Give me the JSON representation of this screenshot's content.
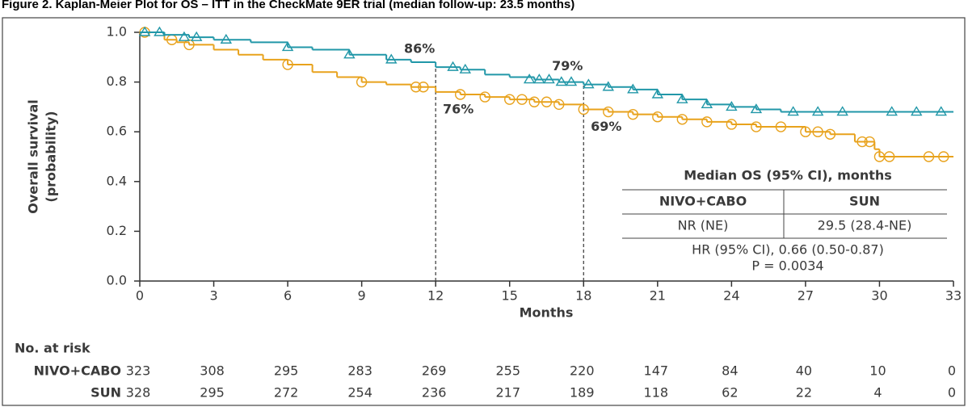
{
  "chart_data": {
    "type": "kaplan-meier",
    "title": "Figure 2. Kaplan-Meier Plot for OS – ITT in the CheckMate 9ER trial (median follow-up: 23.5 months)",
    "x_label": "Months",
    "y_label": [
      "Overall survival",
      "(probability)"
    ],
    "xlim": [
      0,
      33
    ],
    "xticks": [
      0,
      3,
      6,
      9,
      12,
      15,
      18,
      21,
      24,
      27,
      30,
      33
    ],
    "ylim": [
      0,
      1
    ],
    "yticks": [
      {
        "value": 0,
        "label": "0.0"
      },
      0.2,
      0.4,
      0.6,
      0.8,
      {
        "value": 1,
        "label": "1.0"
      }
    ],
    "series": [
      {
        "name": "NIVO+CABO",
        "color": "#2197a8",
        "marker": "triangle",
        "x": [
          0,
          1,
          2,
          3,
          4.5,
          6,
          7,
          8.5,
          10,
          11,
          12,
          13,
          14,
          15,
          16,
          17,
          18,
          19,
          20,
          21,
          22,
          23,
          24,
          25,
          26,
          33
        ],
        "values": [
          1.0,
          0.99,
          0.98,
          0.97,
          0.96,
          0.94,
          0.93,
          0.91,
          0.89,
          0.88,
          0.86,
          0.85,
          0.83,
          0.82,
          0.81,
          0.8,
          0.79,
          0.78,
          0.77,
          0.75,
          0.73,
          0.71,
          0.7,
          0.69,
          0.68,
          0.68
        ],
        "censor_x": [
          0.2,
          0.8,
          1.8,
          2.3,
          3.5,
          6,
          8.5,
          10.2,
          12.7,
          13.2,
          15.8,
          16.2,
          16.6,
          17.1,
          17.5,
          18.2,
          19,
          20,
          21,
          22,
          23,
          24,
          25,
          26.5,
          27.5,
          28.5,
          30.5,
          31.5,
          32.5
        ],
        "censor_values": [
          1.0,
          1.0,
          0.98,
          0.98,
          0.97,
          0.94,
          0.91,
          0.89,
          0.86,
          0.85,
          0.81,
          0.81,
          0.81,
          0.8,
          0.8,
          0.79,
          0.78,
          0.77,
          0.75,
          0.73,
          0.71,
          0.7,
          0.69,
          0.68,
          0.68,
          0.68,
          0.68,
          0.68,
          0.68
        ],
        "at_risk": [
          "323",
          "308",
          "295",
          "283",
          "269",
          "255",
          "220",
          "147",
          "84",
          "40",
          "10",
          "0"
        ]
      },
      {
        "name": "SUN",
        "color": "#e8a21c",
        "marker": "circle",
        "x": [
          0,
          1,
          1.5,
          2,
          3,
          4,
          5,
          6,
          7,
          8,
          9,
          10,
          11,
          12,
          13,
          14,
          15,
          16,
          17,
          18,
          19,
          20,
          21,
          22,
          23,
          24,
          25,
          27,
          28,
          29,
          29.8,
          30,
          33
        ],
        "values": [
          1.0,
          0.97,
          0.96,
          0.95,
          0.93,
          0.91,
          0.89,
          0.87,
          0.84,
          0.82,
          0.8,
          0.79,
          0.78,
          0.76,
          0.75,
          0.74,
          0.73,
          0.72,
          0.71,
          0.69,
          0.68,
          0.67,
          0.66,
          0.65,
          0.64,
          0.63,
          0.62,
          0.6,
          0.59,
          0.56,
          0.53,
          0.5,
          0.5
        ],
        "censor_x": [
          0.2,
          1.3,
          2,
          6,
          9,
          11.2,
          11.5,
          13,
          14,
          15,
          15.5,
          16,
          16.5,
          17,
          18,
          19,
          20,
          21,
          22,
          23,
          24,
          25,
          26,
          27,
          27.5,
          28,
          29.3,
          29.6,
          30,
          30.4,
          32,
          32.6
        ],
        "censor_values": [
          1.0,
          0.97,
          0.95,
          0.87,
          0.8,
          0.78,
          0.78,
          0.75,
          0.74,
          0.73,
          0.73,
          0.72,
          0.72,
          0.71,
          0.69,
          0.68,
          0.67,
          0.66,
          0.65,
          0.64,
          0.63,
          0.62,
          0.62,
          0.6,
          0.6,
          0.59,
          0.56,
          0.56,
          0.5,
          0.5,
          0.5,
          0.5
        ],
        "at_risk": [
          "328",
          "295",
          "272",
          "254",
          "236",
          "217",
          "189",
          "118",
          "62",
          "22",
          "4",
          "0"
        ]
      }
    ],
    "annotations": [
      {
        "label": "86%",
        "x": 12,
        "value": 0.86,
        "series": 0
      },
      {
        "label": "79%",
        "x": 18,
        "value": 0.79,
        "series": 0
      },
      {
        "label": "76%",
        "x": 12,
        "value": 0.76,
        "series": 1
      },
      {
        "label": "69%",
        "x": 18,
        "value": 0.69,
        "series": 1
      }
    ],
    "at_risk_title": "No. at risk",
    "inset": {
      "title": "Median OS (95% CI), months",
      "header": [
        "NIVO+CABO",
        "SUN"
      ],
      "row": [
        "NR (NE)",
        "29.5 (28.4-NE)"
      ],
      "hr": "HR (95% CI), 0.66 (0.50-0.87)",
      "p": "P = 0.0034"
    }
  }
}
